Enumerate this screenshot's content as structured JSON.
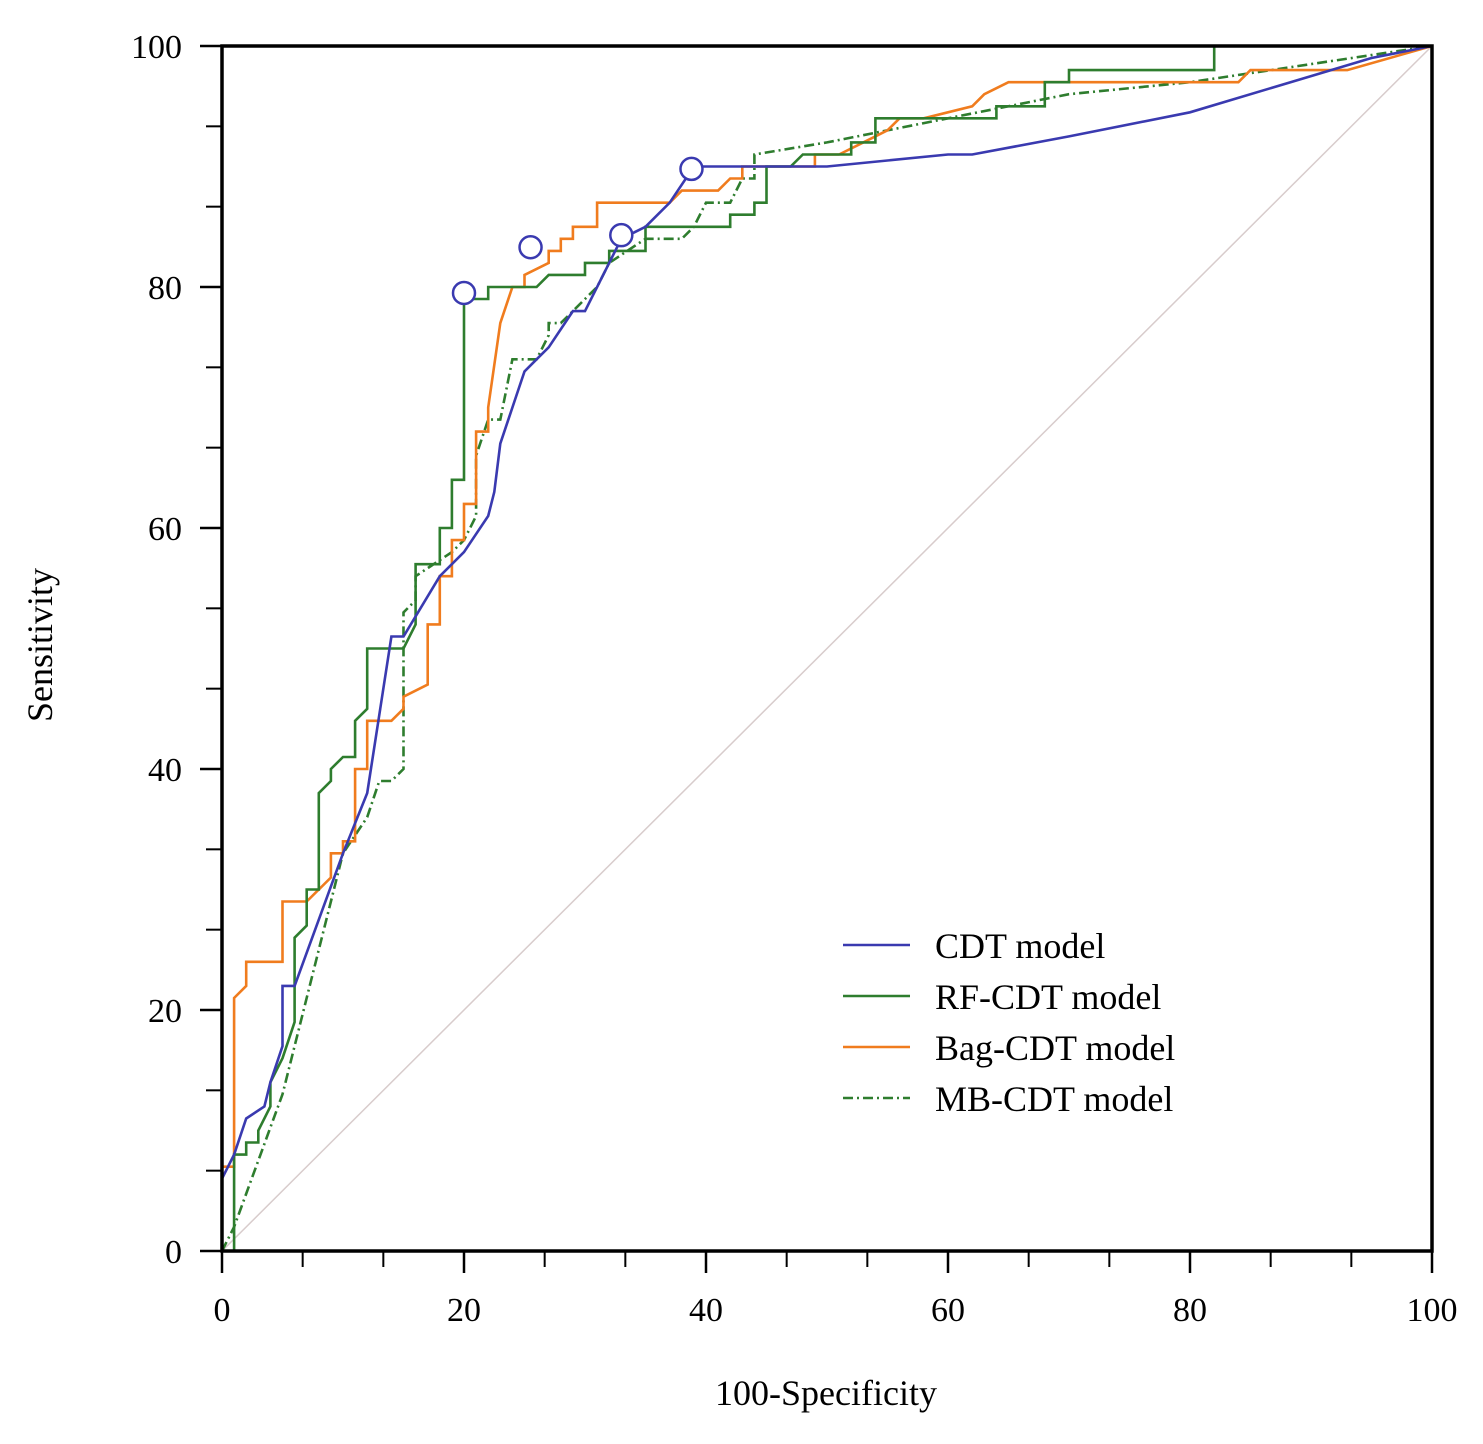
{
  "chart_data": {
    "type": "line",
    "title": "",
    "xlabel": "100-Specificity",
    "ylabel": "Sensitivity",
    "xlim": [
      0,
      100
    ],
    "ylim": [
      0,
      100
    ],
    "x_ticks": [
      0,
      20,
      40,
      60,
      80,
      100
    ],
    "y_ticks": [
      0,
      20,
      40,
      60,
      80,
      100
    ],
    "grid": false,
    "legend_position": "bottom-right",
    "reference_line": {
      "from": [
        0,
        0
      ],
      "to": [
        100,
        100
      ],
      "color": "#d8cccc"
    },
    "series": [
      {
        "name": "CDT model",
        "color": "#3a3ab0",
        "dash": "solid",
        "points": [
          [
            0,
            0
          ],
          [
            0,
            6
          ],
          [
            1,
            8
          ],
          [
            2,
            11
          ],
          [
            3.5,
            12
          ],
          [
            4,
            14
          ],
          [
            5,
            17
          ],
          [
            5,
            22
          ],
          [
            6,
            22
          ],
          [
            10,
            33
          ],
          [
            12,
            38
          ],
          [
            14,
            51
          ],
          [
            15,
            51
          ],
          [
            18,
            56
          ],
          [
            20,
            58
          ],
          [
            22,
            61
          ],
          [
            22.5,
            63
          ],
          [
            23,
            67
          ],
          [
            24,
            70
          ],
          [
            25,
            73
          ],
          [
            26,
            74
          ],
          [
            27,
            75
          ],
          [
            29,
            78
          ],
          [
            30,
            78
          ],
          [
            32,
            82
          ],
          [
            33,
            84
          ],
          [
            35,
            85
          ],
          [
            37,
            87
          ],
          [
            39,
            90
          ],
          [
            42,
            90
          ],
          [
            45,
            90
          ],
          [
            50,
            90
          ],
          [
            60,
            91
          ],
          [
            62,
            91
          ],
          [
            70,
            92.5
          ],
          [
            80,
            94.5
          ],
          [
            90,
            97.5
          ],
          [
            95,
            99
          ],
          [
            100,
            100
          ]
        ]
      },
      {
        "name": "RF-CDT model",
        "color": "#2e7d2e",
        "dash": "solid",
        "points": [
          [
            0,
            0
          ],
          [
            0.5,
            0
          ],
          [
            1,
            0
          ],
          [
            1,
            8
          ],
          [
            2,
            8
          ],
          [
            2,
            9
          ],
          [
            3,
            9
          ],
          [
            3,
            10
          ],
          [
            4,
            12
          ],
          [
            4,
            14
          ],
          [
            5,
            16
          ],
          [
            6,
            19
          ],
          [
            6,
            26
          ],
          [
            7,
            27
          ],
          [
            7,
            30
          ],
          [
            8,
            30
          ],
          [
            8,
            38
          ],
          [
            9,
            39
          ],
          [
            9,
            40
          ],
          [
            10,
            41
          ],
          [
            11,
            41
          ],
          [
            11,
            44
          ],
          [
            12,
            45
          ],
          [
            12,
            47
          ],
          [
            12,
            50
          ],
          [
            15,
            50
          ],
          [
            16,
            52
          ],
          [
            16,
            57
          ],
          [
            18,
            57
          ],
          [
            18,
            60
          ],
          [
            19,
            60
          ],
          [
            19,
            64
          ],
          [
            20,
            64
          ],
          [
            20,
            79
          ],
          [
            22,
            79
          ],
          [
            22,
            80
          ],
          [
            24,
            80
          ],
          [
            26,
            80
          ],
          [
            27,
            81
          ],
          [
            30,
            81
          ],
          [
            30,
            82
          ],
          [
            32,
            82
          ],
          [
            32,
            83
          ],
          [
            35,
            83
          ],
          [
            35,
            85
          ],
          [
            42,
            85
          ],
          [
            42,
            86
          ],
          [
            44,
            86
          ],
          [
            44,
            87
          ],
          [
            45,
            87
          ],
          [
            45,
            90
          ],
          [
            47,
            90
          ],
          [
            48,
            91
          ],
          [
            52,
            91
          ],
          [
            52,
            92
          ],
          [
            54,
            92
          ],
          [
            54,
            94
          ],
          [
            58,
            94
          ],
          [
            60,
            94
          ],
          [
            64,
            94
          ],
          [
            64,
            95
          ],
          [
            68,
            95
          ],
          [
            68,
            97
          ],
          [
            70,
            97
          ],
          [
            70,
            98
          ],
          [
            82,
            98
          ],
          [
            82,
            100
          ],
          [
            100,
            100
          ]
        ]
      },
      {
        "name": "Bag-CDT model",
        "color": "#f07c1e",
        "dash": "solid",
        "points": [
          [
            0,
            0
          ],
          [
            0,
            7
          ],
          [
            1,
            7
          ],
          [
            1,
            21
          ],
          [
            2,
            22
          ],
          [
            2,
            24
          ],
          [
            5,
            24
          ],
          [
            5,
            29
          ],
          [
            7,
            29
          ],
          [
            8,
            30
          ],
          [
            9,
            31
          ],
          [
            9,
            33
          ],
          [
            10,
            33
          ],
          [
            10,
            34
          ],
          [
            11,
            34
          ],
          [
            11,
            40
          ],
          [
            12,
            40
          ],
          [
            12,
            44
          ],
          [
            14,
            44
          ],
          [
            15,
            45
          ],
          [
            15,
            46
          ],
          [
            17,
            47
          ],
          [
            17,
            52
          ],
          [
            18,
            52
          ],
          [
            18,
            56
          ],
          [
            19,
            56
          ],
          [
            19,
            59
          ],
          [
            20,
            59
          ],
          [
            20,
            62
          ],
          [
            21,
            62
          ],
          [
            21,
            68
          ],
          [
            22,
            68
          ],
          [
            22,
            70
          ],
          [
            23,
            77
          ],
          [
            24,
            80
          ],
          [
            25,
            80
          ],
          [
            25,
            81
          ],
          [
            27,
            82
          ],
          [
            27,
            83
          ],
          [
            28,
            83
          ],
          [
            28,
            84
          ],
          [
            29,
            84
          ],
          [
            29,
            85
          ],
          [
            31,
            85
          ],
          [
            31,
            87
          ],
          [
            37,
            87
          ],
          [
            38,
            88
          ],
          [
            41,
            88
          ],
          [
            42,
            89
          ],
          [
            43,
            89
          ],
          [
            43,
            90
          ],
          [
            49,
            90
          ],
          [
            49,
            91
          ],
          [
            51,
            91
          ],
          [
            53,
            92
          ],
          [
            55,
            93
          ],
          [
            56,
            94
          ],
          [
            58,
            94
          ],
          [
            62,
            95
          ],
          [
            63,
            96
          ],
          [
            65,
            97
          ],
          [
            67,
            97
          ],
          [
            70,
            97
          ],
          [
            84,
            97
          ],
          [
            85,
            98
          ],
          [
            93,
            98
          ],
          [
            100,
            100
          ]
        ]
      },
      {
        "name": "MB-CDT model",
        "color": "#2e7d2e",
        "dash": "dashdot",
        "points": [
          [
            0,
            0
          ],
          [
            1,
            2
          ],
          [
            5,
            13
          ],
          [
            10,
            33
          ],
          [
            12,
            36
          ],
          [
            13,
            39
          ],
          [
            14,
            39
          ],
          [
            15,
            40
          ],
          [
            15,
            53
          ],
          [
            16,
            54
          ],
          [
            16,
            56
          ],
          [
            19,
            58
          ],
          [
            20,
            59
          ],
          [
            21,
            61
          ],
          [
            21,
            66
          ],
          [
            22,
            69
          ],
          [
            23,
            69
          ],
          [
            24,
            74
          ],
          [
            26,
            74
          ],
          [
            27,
            76
          ],
          [
            27,
            77
          ],
          [
            28,
            77
          ],
          [
            29,
            78
          ],
          [
            30,
            79
          ],
          [
            31,
            80
          ],
          [
            32,
            82
          ],
          [
            35,
            84
          ],
          [
            38,
            84
          ],
          [
            39,
            85
          ],
          [
            40,
            87
          ],
          [
            42,
            87
          ],
          [
            43,
            89
          ],
          [
            44,
            89
          ],
          [
            44,
            91
          ],
          [
            50,
            92
          ],
          [
            60,
            94
          ],
          [
            70,
            96
          ],
          [
            80,
            97
          ],
          [
            90,
            98.5
          ],
          [
            100,
            100
          ]
        ]
      }
    ],
    "markers": [
      {
        "series": "CDT model",
        "x": 20,
        "y": 79.5
      },
      {
        "series": "CDT model",
        "x": 25.5,
        "y": 83.3
      },
      {
        "series": "CDT model",
        "x": 33,
        "y": 84.3
      },
      {
        "series": "CDT model",
        "x": 38.8,
        "y": 89.8
      }
    ]
  }
}
